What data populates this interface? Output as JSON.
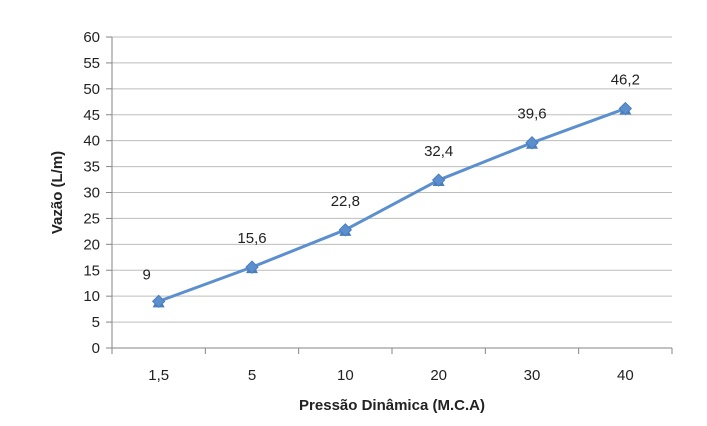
{
  "chart_data": {
    "type": "line",
    "categories": [
      "1,5",
      "5",
      "10",
      "20",
      "30",
      "40"
    ],
    "values": [
      9,
      15.6,
      22.8,
      32.4,
      39.6,
      46.2
    ],
    "data_labels": [
      "9",
      "15,6",
      "22,8",
      "32,4",
      "39,6",
      "46,2"
    ],
    "xlabel": "Pressão Dinâmica (M.C.A)",
    "ylabel": "Vazão (L/m)",
    "ylim": [
      0,
      60
    ],
    "yticks": [
      "0",
      "5",
      "10",
      "15",
      "20",
      "25",
      "30",
      "35",
      "40",
      "45",
      "50",
      "55",
      "60"
    ],
    "grid": true,
    "legend": "none",
    "colors": {
      "series": "#5b8fce",
      "marker": "#4a7ebd",
      "grid": "#bdbdbd",
      "axis": "#868686"
    }
  }
}
